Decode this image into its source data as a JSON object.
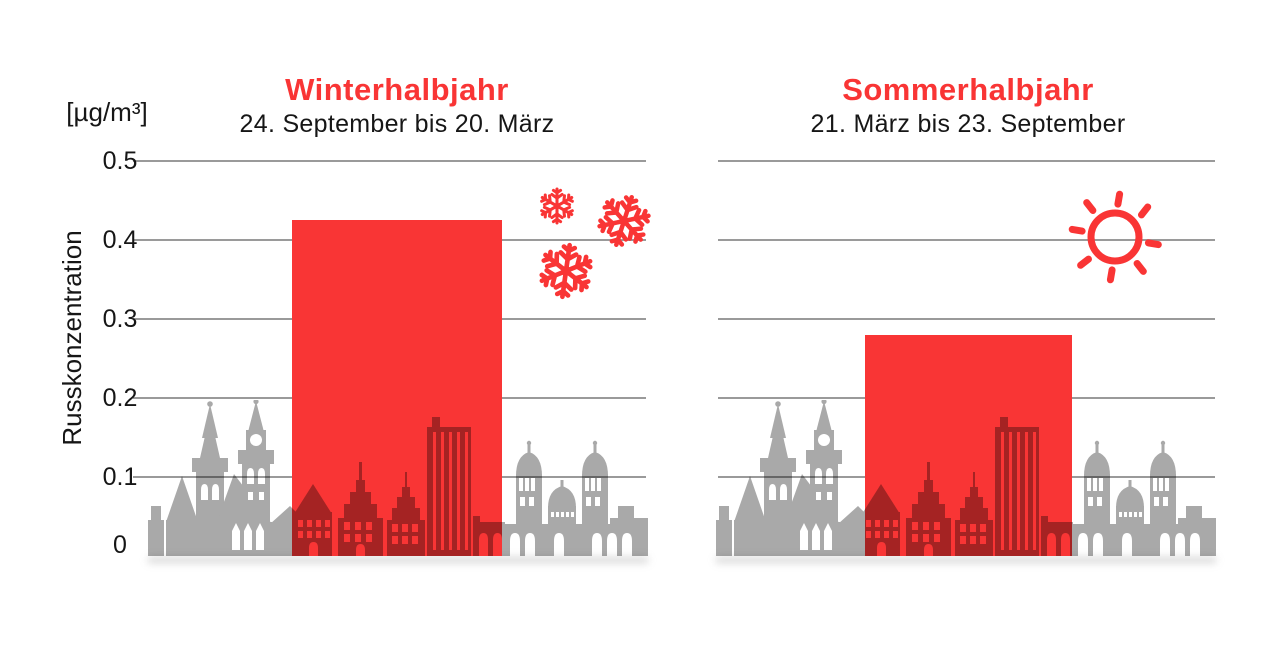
{
  "y_axis": {
    "unit_label": "[µg/m³]",
    "axis_title": "Russkonzentration",
    "tick_labels": [
      "0.5",
      "0.4",
      "0.3",
      "0.2",
      "0.1",
      "0"
    ]
  },
  "panels": [
    {
      "title": "Winterhalbjahr",
      "subtitle": "24. September bis 20. März",
      "icon": "snowflakes-icon"
    },
    {
      "title": "Sommerhalbjahr",
      "subtitle": "21. März bis 23. September",
      "icon": "sun-icon"
    }
  ],
  "colors": {
    "accent_red": "#f93535",
    "skyline_gray": "#a9a9a9",
    "overlap_dark_red": "#a52323",
    "gridline_gray": "#9a9a9a",
    "text_dark": "#161616",
    "background": "#ffffff"
  },
  "chart_data": {
    "type": "bar",
    "categories": [
      "Winterhalbjahr (24. September bis 20. März)",
      "Sommerhalbjahr (21. März bis 23. September)"
    ],
    "values": [
      0.425,
      0.28
    ],
    "title": "",
    "xlabel": "",
    "ylabel": "Russkonzentration [µg/m³]",
    "ylim": [
      0,
      0.5
    ],
    "yticks": [
      0,
      0.1,
      0.2,
      0.3,
      0.4,
      0.5
    ],
    "grid": true,
    "legend_position": "none"
  }
}
